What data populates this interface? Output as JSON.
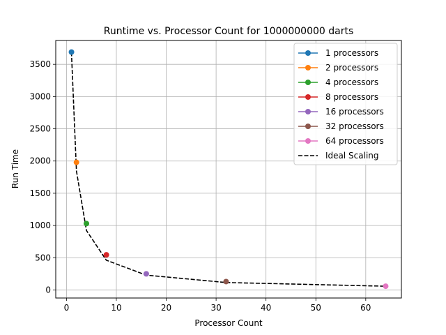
{
  "chart_data": {
    "type": "scatter",
    "title": "Runtime vs. Processor Count for 1000000000 darts",
    "xlabel": "Processor Count",
    "ylabel": "Run Time",
    "xlim": [
      -2.15,
      67.15
    ],
    "ylim": [
      -125,
      3870
    ],
    "xticks": [
      0,
      10,
      20,
      30,
      40,
      50,
      60
    ],
    "yticks": [
      0,
      500,
      1000,
      1500,
      2000,
      2500,
      3000,
      3500
    ],
    "grid": true,
    "legend_position": "top-right",
    "series": [
      {
        "name": "1 processors",
        "color": "#1f77b4",
        "x": [
          1
        ],
        "y": [
          3690
        ]
      },
      {
        "name": "2 processors",
        "color": "#ff7f0e",
        "x": [
          2
        ],
        "y": [
          1980
        ]
      },
      {
        "name": "4 processors",
        "color": "#2ca02c",
        "x": [
          4
        ],
        "y": [
          1030
        ]
      },
      {
        "name": "8 processors",
        "color": "#d62728",
        "x": [
          8
        ],
        "y": [
          545
        ]
      },
      {
        "name": "16 processors",
        "color": "#9467bd",
        "x": [
          16
        ],
        "y": [
          250
        ]
      },
      {
        "name": "32 processors",
        "color": "#8c564b",
        "x": [
          32
        ],
        "y": [
          130
        ]
      },
      {
        "name": "64 processors",
        "color": "#e377c2",
        "x": [
          64
        ],
        "y": [
          58
        ]
      }
    ],
    "ideal": {
      "name": "Ideal Scaling",
      "color": "#000000",
      "style": "dashed",
      "x": [
        1,
        2,
        4,
        8,
        16,
        32,
        64
      ],
      "y": [
        3690,
        1845,
        922.5,
        461.25,
        230.6,
        115.3,
        57.7
      ]
    }
  }
}
